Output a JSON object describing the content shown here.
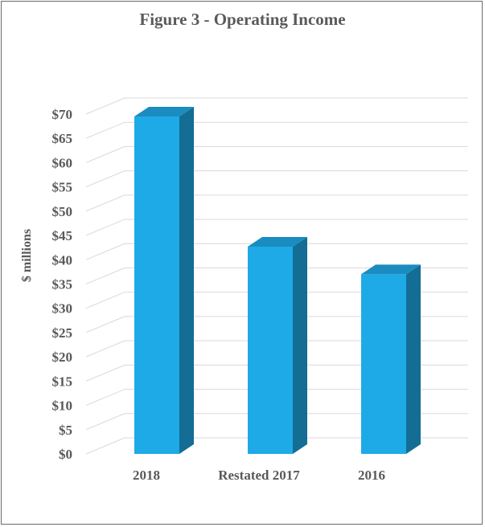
{
  "chart_data": {
    "type": "bar",
    "title": "Figure 3 - Operating Income",
    "ylabel": "$ millions",
    "xlabel": "",
    "categories": [
      "2018",
      "Restated 2017",
      "2016"
    ],
    "values": [
      69.5,
      42.7,
      37.0
    ],
    "ylim": [
      0,
      70
    ],
    "ytick_step": 5,
    "ytick_labels": [
      "$0",
      "$5",
      "$10",
      "$15",
      "$20",
      "$25",
      "$30",
      "$35",
      "$40",
      "$45",
      "$50",
      "$55",
      "$60",
      "$65",
      "$70"
    ],
    "grid": true,
    "style": "3d-column",
    "colors": {
      "front": "#1eaae6",
      "side": "#136d94",
      "top": "#1a8cc0",
      "grid": "#d9d9d9"
    }
  }
}
